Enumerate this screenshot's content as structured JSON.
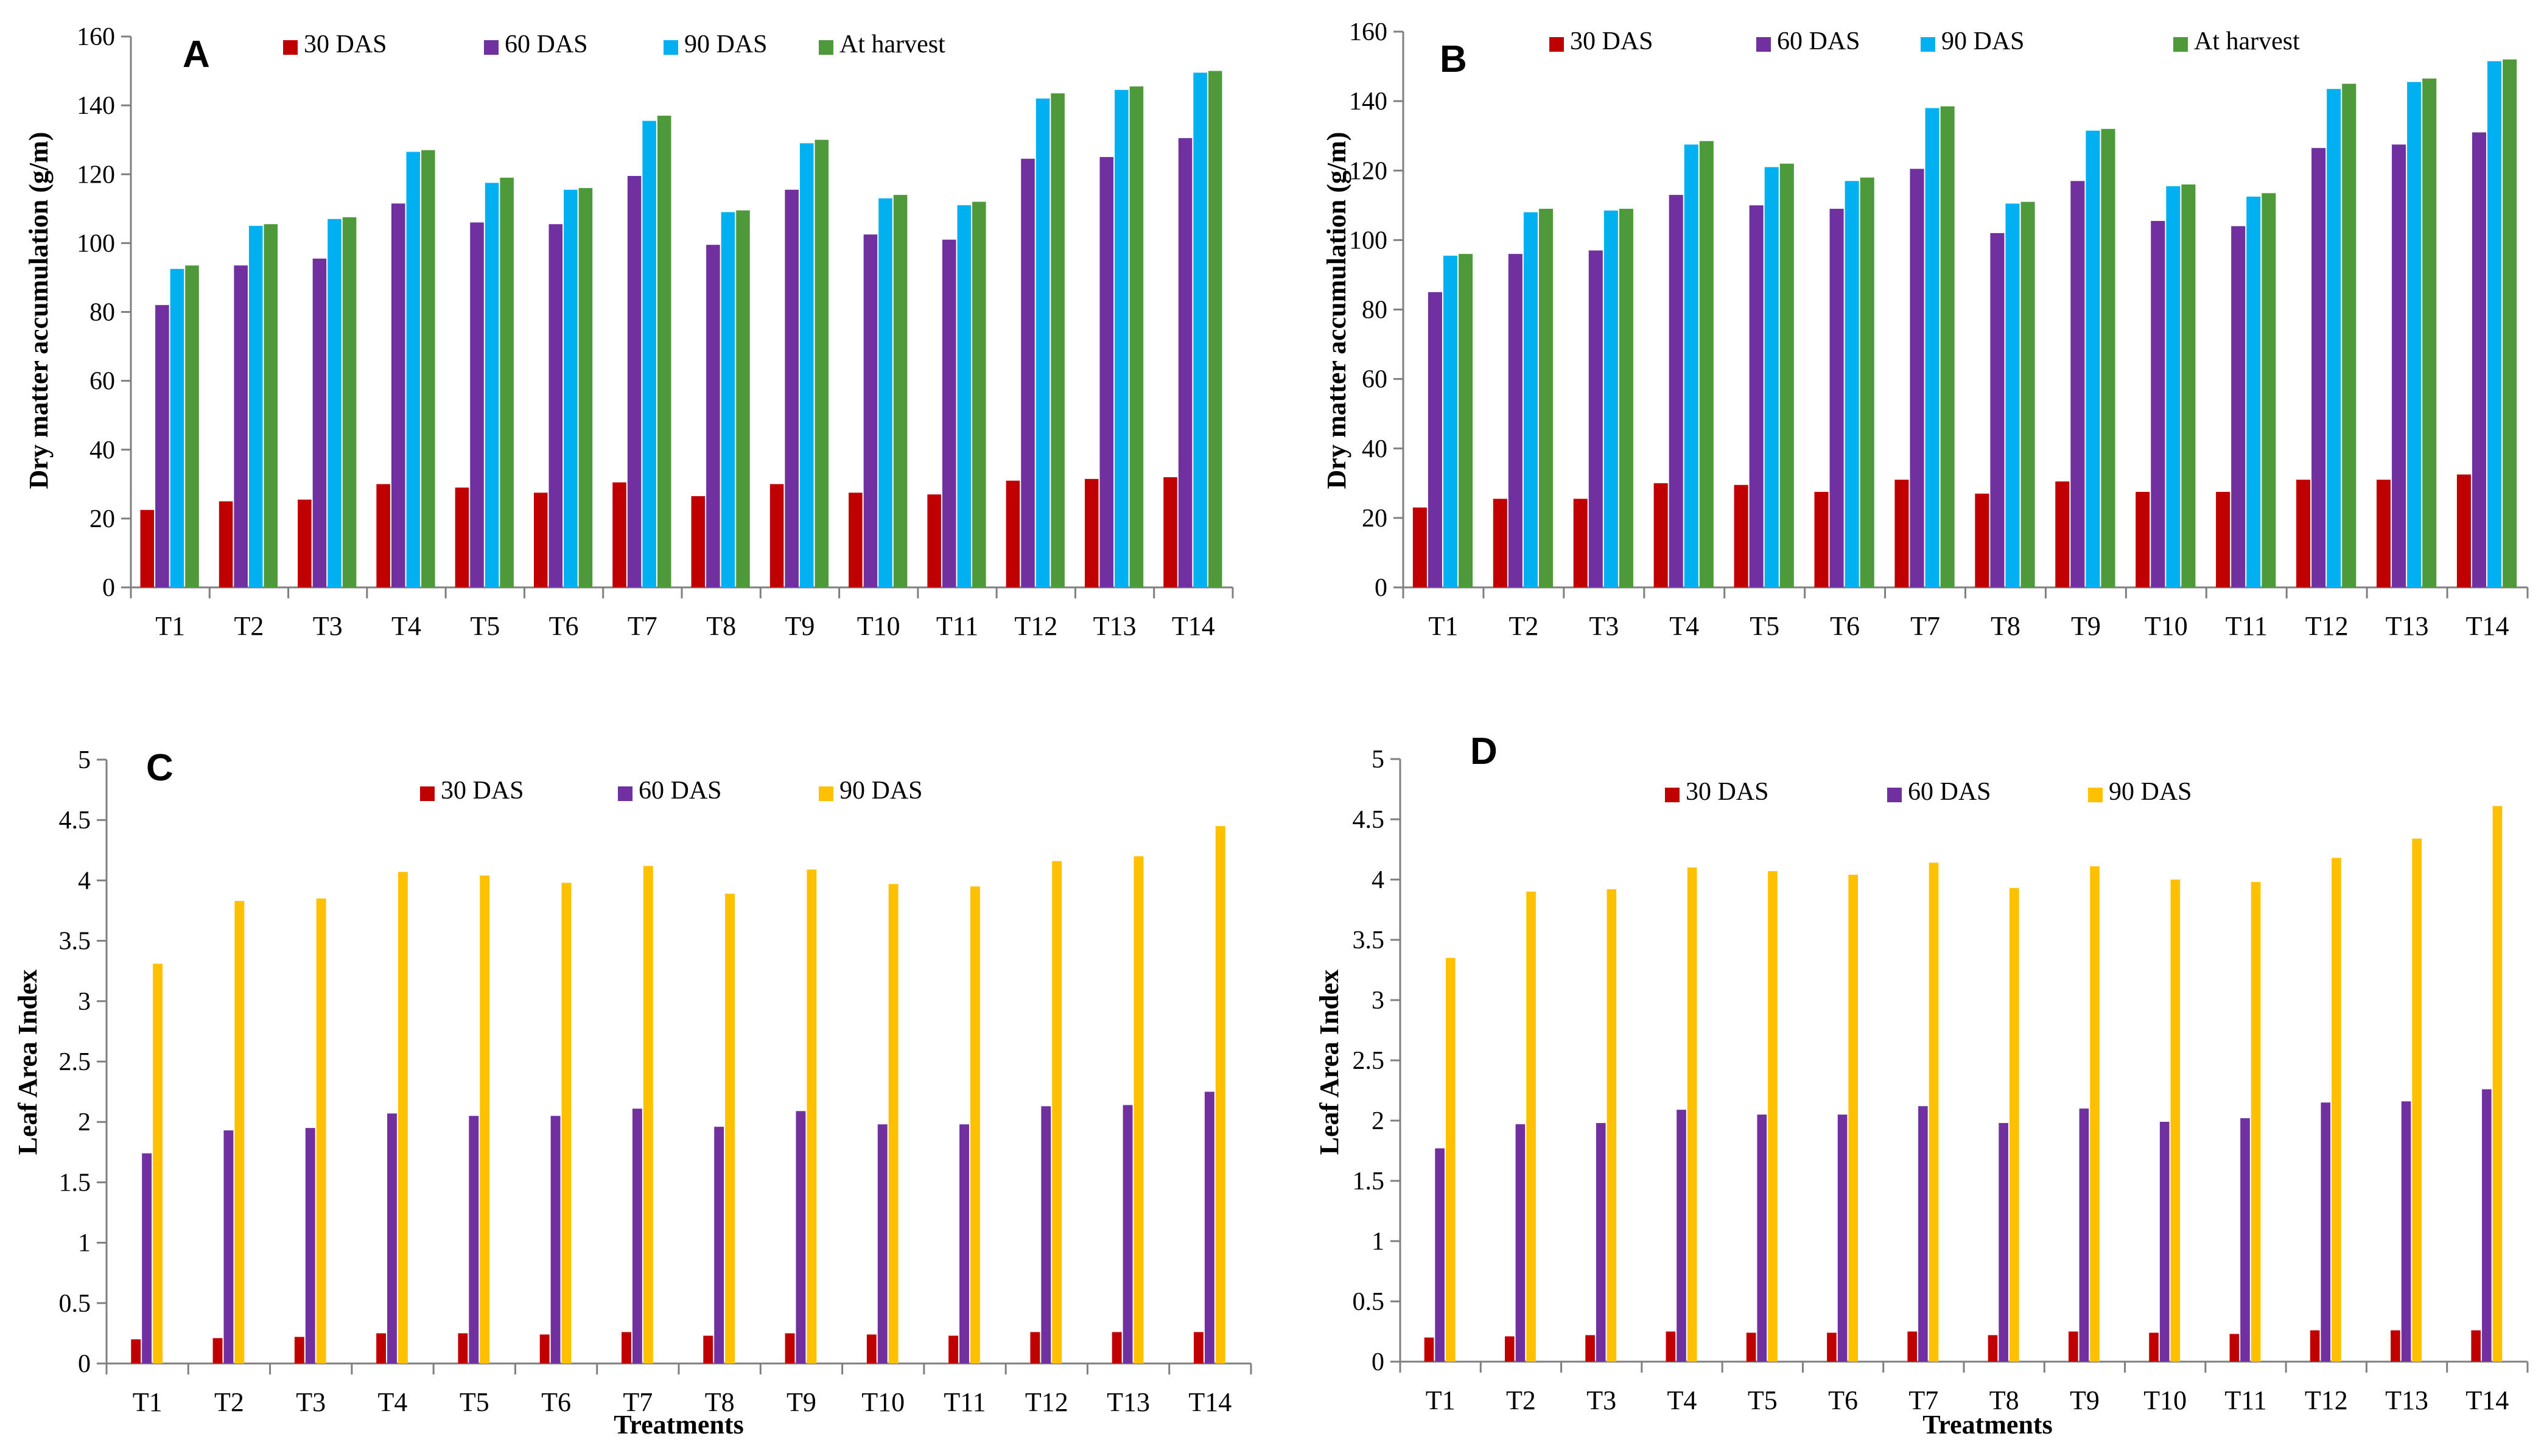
{
  "colors": {
    "d30": "#C00000",
    "d60": "#7030A0",
    "d90": "#00B0F0",
    "d90_lai": "#FFC000",
    "harvest": "#4E9A3A",
    "axis": "#7f7f7f"
  },
  "chart_data": [
    {
      "panel": "A",
      "type": "bar",
      "title": "",
      "xlabel": "",
      "ylabel": "Dry matter accumulation (g/m)",
      "ylim": [
        0,
        160
      ],
      "yticks": [
        "0",
        "20",
        "40",
        "60",
        "80",
        "100",
        "120",
        "140",
        "160"
      ],
      "legend_position": "top",
      "categories": [
        "T1",
        "T2",
        "T3",
        "T4",
        "T5",
        "T6",
        "T7",
        "T8",
        "T9",
        "T10",
        "T11",
        "T12",
        "T13",
        "T14"
      ],
      "series": [
        {
          "name": "30 DAS",
          "color_key": "d30",
          "values": [
            22.5,
            25,
            25.5,
            30,
            29,
            27.5,
            30.5,
            26.5,
            30,
            27.5,
            27,
            31,
            31.5,
            32
          ]
        },
        {
          "name": "60 DAS",
          "color_key": "d60",
          "values": [
            82,
            93.5,
            95.5,
            111.5,
            106,
            105.5,
            119.5,
            99.5,
            115.5,
            102.5,
            101,
            124.5,
            125,
            130.5
          ]
        },
        {
          "name": "90 DAS",
          "color_key": "d90",
          "values": [
            92.5,
            105,
            107,
            126.5,
            117.5,
            115.5,
            135.5,
            109,
            129,
            113,
            111,
            142,
            144.5,
            149.5
          ]
        },
        {
          "name": "At harvest",
          "color_key": "harvest",
          "values": [
            93.5,
            105.5,
            107.5,
            127,
            119,
            116,
            137,
            109.5,
            130,
            114,
            112,
            143.5,
            145.5,
            150
          ]
        }
      ]
    },
    {
      "panel": "B",
      "type": "bar",
      "title": "",
      "xlabel": "",
      "ylabel": "Dry matter accumulation (g/m)",
      "ylim": [
        0,
        160
      ],
      "yticks": [
        "0",
        "20",
        "40",
        "60",
        "80",
        "100",
        "120",
        "140",
        "160"
      ],
      "legend_position": "top",
      "categories": [
        "T1",
        "T2",
        "T3",
        "T4",
        "T5",
        "T6",
        "T7",
        "T8",
        "T9",
        "T10",
        "T11",
        "T12",
        "T13",
        "T14"
      ],
      "series": [
        {
          "name": "30 DAS",
          "color_key": "d30",
          "values": [
            23,
            25.5,
            25.5,
            30,
            29.5,
            27.5,
            31,
            27,
            30.5,
            27.5,
            27.5,
            31,
            31,
            32.5
          ]
        },
        {
          "name": "60 DAS",
          "color_key": "d60",
          "values": [
            85,
            96,
            97,
            113,
            110,
            109,
            120.5,
            102,
            117,
            105.5,
            104,
            126.5,
            127.5,
            131
          ]
        },
        {
          "name": "90 DAS",
          "color_key": "d90",
          "values": [
            95.5,
            108,
            108.5,
            127.5,
            121,
            117,
            138,
            110.5,
            131.5,
            115.5,
            112.5,
            143.5,
            145.5,
            151.5
          ]
        },
        {
          "name": "At harvest",
          "color_key": "harvest",
          "values": [
            96,
            109,
            109,
            128.5,
            122,
            118,
            138.5,
            111,
            132,
            116,
            113.5,
            145,
            146.5,
            152
          ]
        }
      ]
    },
    {
      "panel": "C",
      "type": "bar",
      "title": "",
      "xlabel": "Treatments",
      "ylabel": "Leaf Area Index",
      "ylim": [
        0,
        5
      ],
      "yticks": [
        "0",
        "0.5",
        "1",
        "1.5",
        "2",
        "2.5",
        "3",
        "3.5",
        "4",
        "4.5",
        "5"
      ],
      "legend_position": "top",
      "categories": [
        "T1",
        "T2",
        "T3",
        "T4",
        "T5",
        "T6",
        "T7",
        "T8",
        "T9",
        "T10",
        "T11",
        "T12",
        "T13",
        "T14"
      ],
      "series": [
        {
          "name": "30 DAS",
          "color_key": "d30",
          "values": [
            0.2,
            0.21,
            0.22,
            0.25,
            0.25,
            0.24,
            0.26,
            0.23,
            0.25,
            0.24,
            0.23,
            0.26,
            0.26,
            0.26
          ]
        },
        {
          "name": "60 DAS",
          "color_key": "d60",
          "values": [
            1.74,
            1.93,
            1.95,
            2.07,
            2.05,
            2.05,
            2.11,
            1.96,
            2.09,
            1.98,
            1.98,
            2.13,
            2.14,
            2.25
          ]
        },
        {
          "name": "90 DAS",
          "color_key": "d90_lai",
          "values": [
            3.31,
            3.83,
            3.85,
            4.07,
            4.04,
            3.98,
            4.12,
            3.89,
            4.09,
            3.97,
            3.95,
            4.16,
            4.2,
            4.45
          ]
        }
      ]
    },
    {
      "panel": "D",
      "type": "bar",
      "title": "",
      "xlabel": "Treatments",
      "ylabel": "Leaf Area Index",
      "ylim": [
        0,
        5
      ],
      "yticks": [
        "0",
        "0.5",
        "1",
        "1.5",
        "2",
        "2.5",
        "3",
        "3.5",
        "4",
        "4.5",
        "5"
      ],
      "legend_position": "top",
      "categories": [
        "T1",
        "T2",
        "T3",
        "T4",
        "T5",
        "T6",
        "T7",
        "T8",
        "T9",
        "T10",
        "T11",
        "T12",
        "T13",
        "T14"
      ],
      "series": [
        {
          "name": "30 DAS",
          "color_key": "d30",
          "values": [
            0.2,
            0.21,
            0.22,
            0.25,
            0.24,
            0.24,
            0.25,
            0.22,
            0.25,
            0.24,
            0.23,
            0.26,
            0.26,
            0.26
          ]
        },
        {
          "name": "60 DAS",
          "color_key": "d60",
          "values": [
            1.77,
            1.97,
            1.98,
            2.09,
            2.05,
            2.05,
            2.12,
            1.98,
            2.1,
            1.99,
            2.02,
            2.15,
            2.16,
            2.26
          ]
        },
        {
          "name": "90 DAS",
          "color_key": "d90_lai",
          "values": [
            3.35,
            3.9,
            3.92,
            4.1,
            4.07,
            4.04,
            4.14,
            3.93,
            4.11,
            4,
            3.98,
            4.18,
            4.34,
            4.61
          ]
        }
      ]
    }
  ]
}
